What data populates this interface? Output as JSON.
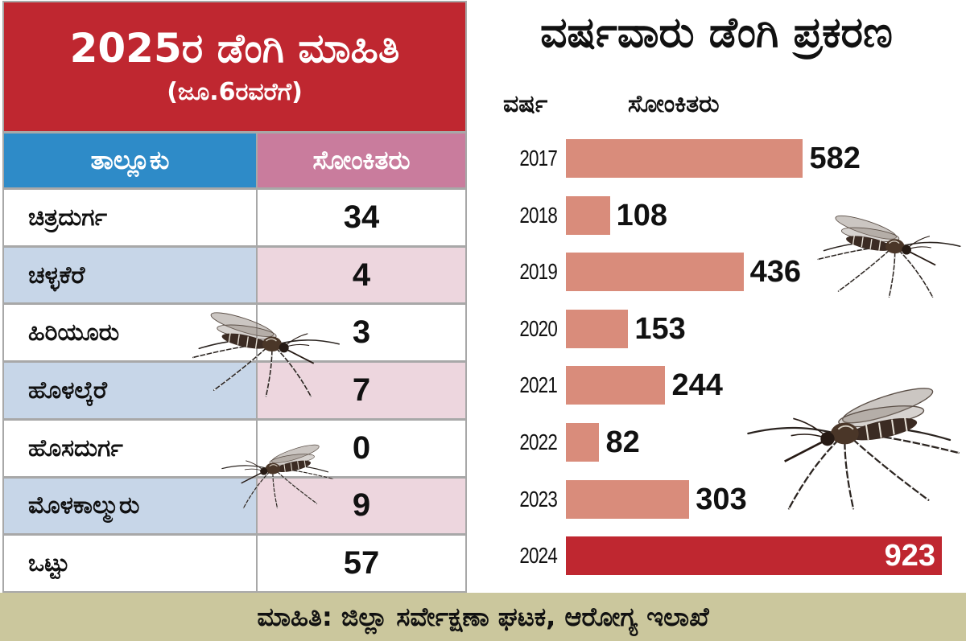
{
  "colors": {
    "header_red": "#bf2730",
    "column_header_blue": "#2e8bc8",
    "column_header_pink": "#c97c9d",
    "row_alt_blue": "#c7d6e8",
    "row_alt_pink": "#edd6de",
    "bar": "#d98c7b",
    "bar_highlight": "#bf2730",
    "footer_bg": "#cbc79d"
  },
  "icons": {
    "decoration": "mosquito-icon"
  },
  "chart_data": [
    {
      "type": "table",
      "title": "2025ರ ಡೆಂಗಿ ಮಾಹಿತಿ",
      "subtitle": "(ಜೂ.6ರವರೆಗೆ)",
      "columns": [
        "ತಾಲ್ಲೂಕು",
        "ಸೋಂಕಿತರು"
      ],
      "rows": [
        [
          "ಚಿತ್ರದುರ್ಗ",
          34
        ],
        [
          "ಚಳ್ಳಕೆರೆ",
          4
        ],
        [
          "ಹಿರಿಯೂರು",
          3
        ],
        [
          "ಹೊಳಲ್ಕೆರೆ",
          7
        ],
        [
          "ಹೊಸದುರ್ಗ",
          0
        ],
        [
          "ಮೊಳಕಾಲ್ಮುರು",
          9
        ],
        [
          "ಒಟ್ಟು",
          57
        ]
      ]
    },
    {
      "type": "bar",
      "orientation": "horizontal",
      "title": "ವರ್ಷವಾರು ಡೆಂಗಿ ಪ್ರಕರಣ",
      "ylabel": "ವರ್ಷ",
      "xlabel": "ಸೋಂಕಿತರು",
      "categories": [
        "2017",
        "2018",
        "2019",
        "2020",
        "2021",
        "2022",
        "2023",
        "2024"
      ],
      "values": [
        582,
        108,
        436,
        153,
        244,
        82,
        303,
        923
      ],
      "highlight_category": "2024",
      "grid": false,
      "legend": "none"
    }
  ],
  "footer": {
    "source": "ಮಾಹಿತಿ: ಜಿಲ್ಲಾ ಸರ್ವೇಕ್ಷಣಾ ಘಟಕ, ಆರೋಗ್ಯ ಇಲಾಖೆ"
  }
}
